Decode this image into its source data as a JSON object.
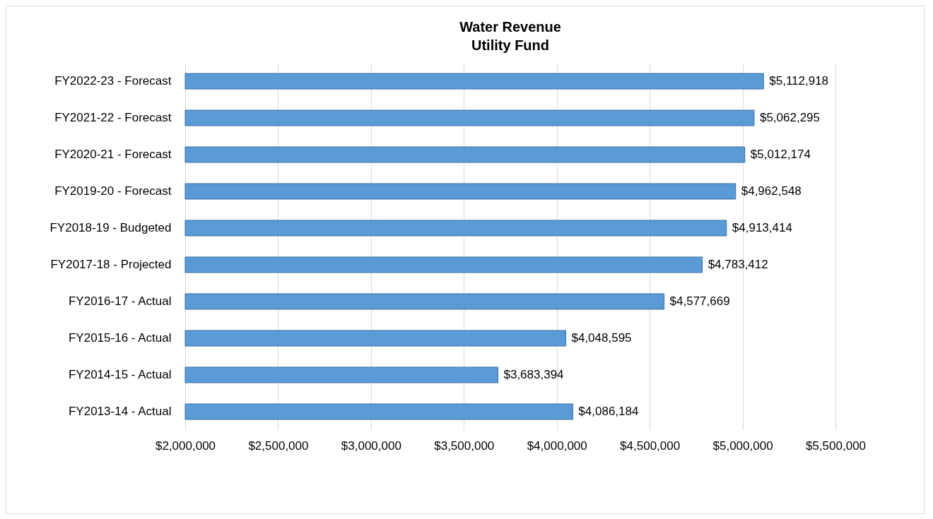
{
  "chart_data": {
    "type": "bar",
    "orientation": "horizontal",
    "title": "Water Revenue",
    "subtitle": "Utility Fund",
    "categories": [
      "FY2022-23 - Forecast",
      "FY2021-22 - Forecast",
      "FY2020-21 - Forecast",
      "FY2019-20 - Forecast",
      "FY2018-19 - Budgeted",
      "FY2017-18 - Projected",
      "FY2016-17 - Actual",
      "FY2015-16 - Actual",
      "FY2014-15 - Actual",
      "FY2013-14 - Actual"
    ],
    "values": [
      5112918,
      5062295,
      5012174,
      4962548,
      4913414,
      4783412,
      4577669,
      4048595,
      3683394,
      4086184
    ],
    "value_labels": [
      "$5,112,918",
      "$5,062,295",
      "$5,012,174",
      "$4,962,548",
      "$4,913,414",
      "$4,783,412",
      "$4,577,669",
      "$4,048,595",
      "$3,683,394",
      "$4,086,184"
    ],
    "color": "#5b9bd5",
    "xlim": [
      2000000,
      5500000
    ],
    "xticks": [
      {
        "value": 2000000,
        "label": "$2,000,000"
      },
      {
        "value": 2500000,
        "label": "$2,500,000"
      },
      {
        "value": 3000000,
        "label": "$3,000,000"
      },
      {
        "value": 3500000,
        "label": "$3,500,000"
      },
      {
        "value": 4000000,
        "label": "$4,000,000"
      },
      {
        "value": 4500000,
        "label": "$4,500,000"
      },
      {
        "value": 5000000,
        "label": "$5,000,000"
      },
      {
        "value": 5500000,
        "label": "$5,500,000"
      }
    ],
    "grid": true
  }
}
